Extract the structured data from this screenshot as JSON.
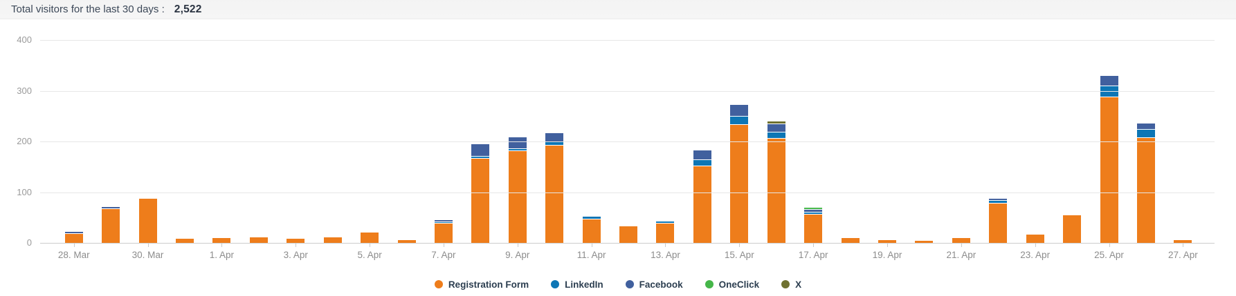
{
  "header": {
    "label": "Total visitors for the last 30 days :",
    "value": "2,522"
  },
  "chart_data": {
    "type": "bar",
    "stacked": true,
    "title": "Total visitors for the last 30 days",
    "total_visitors": 2522,
    "grid": true,
    "legend_position": "bottom",
    "ylim": [
      0,
      400
    ],
    "y_ticks": [
      0,
      100,
      200,
      300,
      400
    ],
    "categories": [
      "28. Mar",
      "29. Mar",
      "30. Mar",
      "31. Mar",
      "1. Apr",
      "2. Apr",
      "3. Apr",
      "4. Apr",
      "5. Apr",
      "6. Apr",
      "7. Apr",
      "8. Apr",
      "9. Apr",
      "10. Apr",
      "11. Apr",
      "12. Apr",
      "13. Apr",
      "14. Apr",
      "15. Apr",
      "16. Apr",
      "17. Apr",
      "18. Apr",
      "19. Apr",
      "20. Apr",
      "21. Apr",
      "22. Apr",
      "23. Apr",
      "24. Apr",
      "25. Apr",
      "26. Apr",
      "27. Apr"
    ],
    "x_labels_shown_every": 2,
    "x_tick_labels": [
      "28. Mar",
      "30. Mar",
      "1. Apr",
      "3. Apr",
      "5. Apr",
      "7. Apr",
      "9. Apr",
      "11. Apr",
      "13. Apr",
      "15. Apr",
      "17. Apr",
      "19. Apr",
      "21. Apr",
      "23. Apr",
      "25. Apr",
      "27. Apr"
    ],
    "series": [
      {
        "name": "Registration Form",
        "color": "#ee7d1b",
        "values": [
          18,
          67,
          87,
          8,
          9,
          11,
          8,
          11,
          21,
          6,
          38,
          166,
          181,
          192,
          46,
          33,
          38,
          151,
          233,
          205,
          56,
          9,
          5,
          4,
          9,
          78,
          16,
          54,
          287,
          207,
          5
        ]
      },
      {
        "name": "LinkedIn",
        "color": "#0d76b5",
        "values": [
          0,
          0,
          0,
          0,
          0,
          0,
          0,
          0,
          0,
          0,
          2,
          3,
          3,
          5,
          4,
          0,
          3,
          11,
          15,
          12,
          3,
          0,
          0,
          0,
          0,
          4,
          0,
          0,
          20,
          15,
          0
        ]
      },
      {
        "name": "Facebook",
        "color": "#41609e",
        "values": [
          2,
          3,
          0,
          0,
          0,
          0,
          0,
          0,
          0,
          0,
          2,
          23,
          21,
          17,
          0,
          0,
          0,
          17,
          22,
          15,
          3,
          0,
          0,
          0,
          0,
          1,
          0,
          0,
          19,
          11,
          0
        ]
      },
      {
        "name": "OneClick",
        "color": "#45b649",
        "values": [
          0,
          0,
          0,
          0,
          0,
          0,
          0,
          0,
          0,
          0,
          0,
          0,
          0,
          0,
          0,
          0,
          0,
          0,
          0,
          0,
          4,
          0,
          0,
          0,
          0,
          0,
          0,
          0,
          0,
          0,
          0
        ]
      },
      {
        "name": "X",
        "color": "#6f7130",
        "values": [
          0,
          0,
          0,
          0,
          0,
          0,
          0,
          0,
          0,
          0,
          0,
          0,
          0,
          0,
          0,
          0,
          0,
          0,
          0,
          3,
          0,
          0,
          0,
          0,
          0,
          0,
          0,
          0,
          0,
          0,
          0
        ]
      }
    ]
  }
}
